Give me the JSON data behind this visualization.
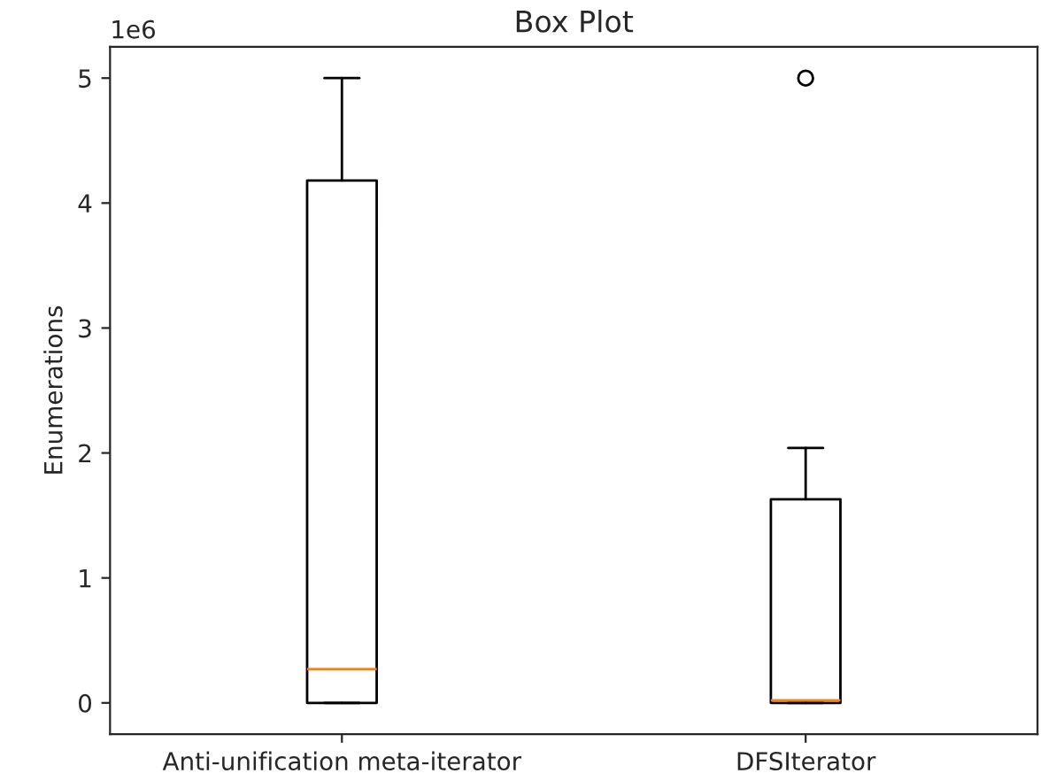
{
  "chart_data": {
    "type": "box",
    "title": "Box Plot",
    "ylabel": "Enumerations",
    "categories": [
      "Anti-unification meta-iterator",
      "DFSIterator"
    ],
    "series": [
      {
        "color": "#000000",
        "boxes": [
          {
            "low": 0,
            "q1": 0,
            "median": 0.27,
            "q3": 4.18,
            "high": 5.0
          },
          {
            "low": 0,
            "q1": 0,
            "median": 0.02,
            "q3": 1.63,
            "high": 2.04,
            "outliers": [
              5.0
            ]
          }
        ]
      }
    ],
    "ylim": [
      -0.25,
      5.25
    ],
    "yticks": [
      0,
      1,
      2,
      3,
      4,
      5
    ],
    "annotations": [
      "1e6"
    ]
  }
}
